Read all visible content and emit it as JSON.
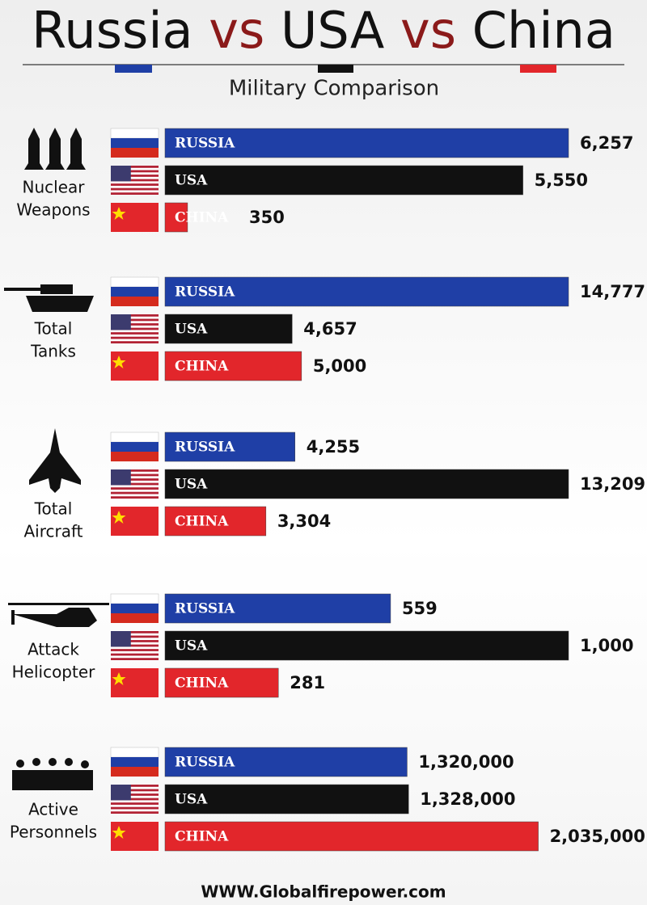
{
  "title_parts": [
    "Russia",
    "vs",
    "USA",
    "vs",
    "China"
  ],
  "subtitle": "Military Comparison",
  "footer": "WWW.Globalfirepower.com",
  "chart_data": [
    {
      "type": "bar",
      "orientation": "horizontal",
      "title_lines": [
        "Nuclear",
        "Weapons"
      ],
      "categories": [
        "RUSSIA",
        "USA",
        "CHINA"
      ],
      "values": [
        6257,
        5550,
        350
      ],
      "value_labels": [
        "6,257",
        "5,550",
        "350"
      ],
      "colors": [
        "#1f3fa6",
        "#111111",
        "#e2262b"
      ],
      "xlim": [
        0,
        6257
      ]
    },
    {
      "type": "bar",
      "orientation": "horizontal",
      "title_lines": [
        "Total",
        "Tanks"
      ],
      "categories": [
        "RUSSIA",
        "USA",
        "CHINA"
      ],
      "values": [
        14777,
        4657,
        5000
      ],
      "value_labels": [
        "14,777",
        "4,657",
        "5,000"
      ],
      "colors": [
        "#1f3fa6",
        "#111111",
        "#e2262b"
      ],
      "xlim": [
        0,
        14777
      ]
    },
    {
      "type": "bar",
      "orientation": "horizontal",
      "title_lines": [
        "Total",
        "Aircraft"
      ],
      "categories": [
        "RUSSIA",
        "USA",
        "CHINA"
      ],
      "values": [
        4255,
        13209,
        3304
      ],
      "value_labels": [
        "4,255",
        "13,209",
        "3,304"
      ],
      "colors": [
        "#1f3fa6",
        "#111111",
        "#e2262b"
      ],
      "xlim": [
        0,
        13209
      ]
    },
    {
      "type": "bar",
      "orientation": "horizontal",
      "title_lines": [
        "Attack",
        "Helicopter"
      ],
      "categories": [
        "RUSSIA",
        "USA",
        "CHINA"
      ],
      "values": [
        559,
        1000,
        281
      ],
      "value_labels": [
        "559",
        "1,000",
        "281"
      ],
      "colors": [
        "#1f3fa6",
        "#111111",
        "#e2262b"
      ],
      "xlim": [
        0,
        1000
      ]
    },
    {
      "type": "bar",
      "orientation": "horizontal",
      "title_lines": [
        "Active",
        "Personnels"
      ],
      "categories": [
        "RUSSIA",
        "USA",
        "CHINA"
      ],
      "values": [
        1320000,
        1328000,
        2035000
      ],
      "value_labels": [
        "1,320,000",
        "1,328,000",
        "2,035,000"
      ],
      "colors": [
        "#1f3fa6",
        "#111111",
        "#e2262b"
      ],
      "xlim": [
        0,
        2200000
      ]
    }
  ]
}
